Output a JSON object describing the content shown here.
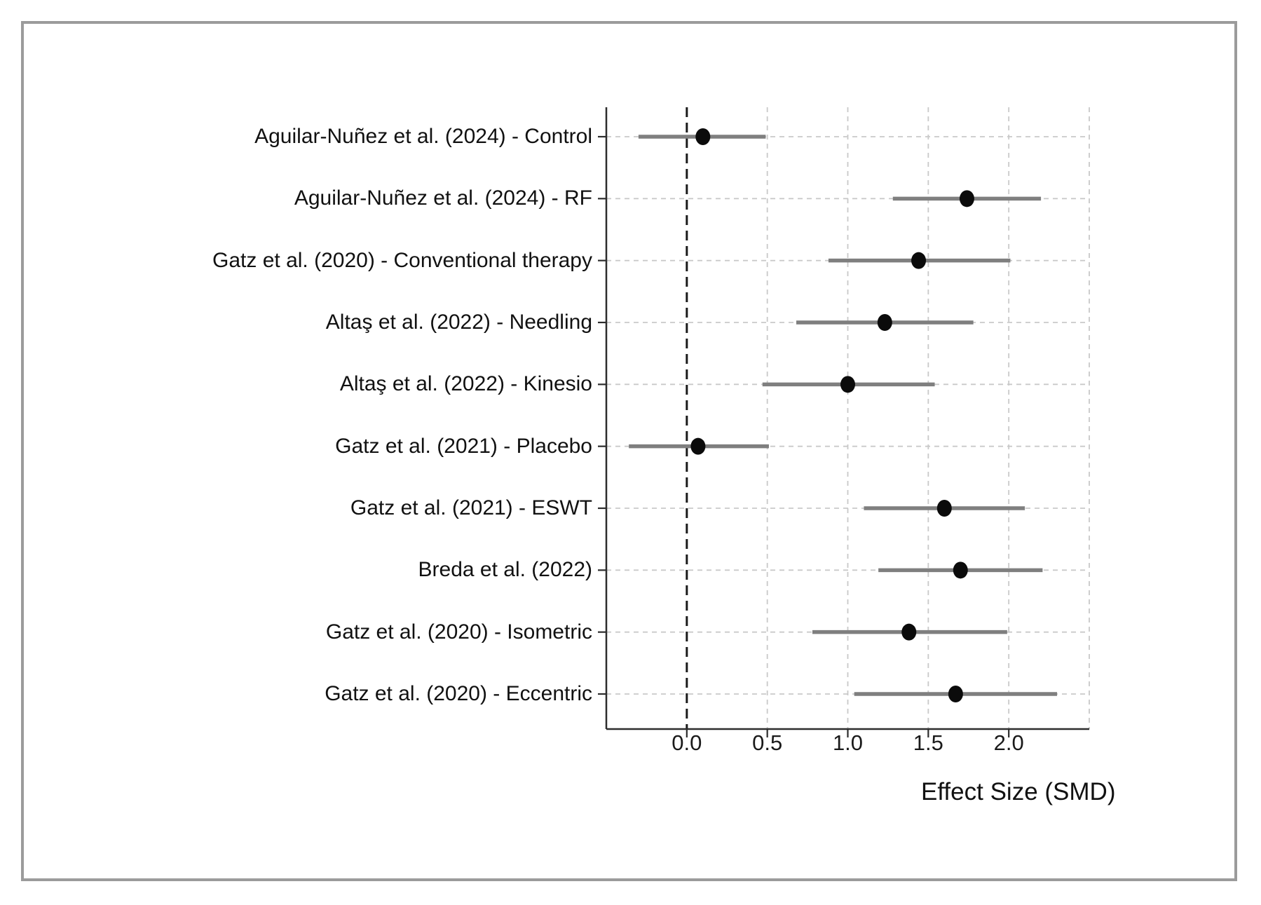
{
  "figure": {
    "background": "#ffffff",
    "border_color": "#9b9b9b"
  },
  "chart_data": {
    "type": "scatter",
    "subtype": "forest_plot",
    "title": "",
    "xlabel": "Effect Size (SMD)",
    "ylabel": "",
    "xlim": [
      -0.5,
      2.5
    ],
    "x_ticks": [
      0.0,
      0.5,
      1.0,
      1.5,
      2.0
    ],
    "x_tick_labels": [
      "0.0",
      "0.5",
      "1.0",
      "1.5",
      "2.0"
    ],
    "grid_x": [
      0.5,
      1.0,
      1.5,
      2.0,
      2.5
    ],
    "zero_line_x": 0.0,
    "grid": true,
    "legend": false,
    "studies": [
      {
        "label": "Aguilar-Nuñez et al. (2024) - Control",
        "estimate": 0.1,
        "ci_low": -0.3,
        "ci_high": 0.49
      },
      {
        "label": "Aguilar-Nuñez et al. (2024) - RF",
        "estimate": 1.74,
        "ci_low": 1.28,
        "ci_high": 2.2
      },
      {
        "label": "Gatz et al. (2020) - Conventional therapy",
        "estimate": 1.44,
        "ci_low": 0.88,
        "ci_high": 2.01
      },
      {
        "label": "Altaş et al. (2022) - Needling",
        "estimate": 1.23,
        "ci_low": 0.68,
        "ci_high": 1.78
      },
      {
        "label": "Altaş et al. (2022) - Kinesio",
        "estimate": 1.0,
        "ci_low": 0.47,
        "ci_high": 1.54
      },
      {
        "label": "Gatz et al. (2021) - Placebo",
        "estimate": 0.07,
        "ci_low": -0.36,
        "ci_high": 0.51
      },
      {
        "label": "Gatz et al. (2021) - ESWT",
        "estimate": 1.6,
        "ci_low": 1.1,
        "ci_high": 2.1
      },
      {
        "label": "Breda et al. (2022)",
        "estimate": 1.7,
        "ci_low": 1.19,
        "ci_high": 2.21
      },
      {
        "label": "Gatz et al. (2020) - Isometric",
        "estimate": 1.38,
        "ci_low": 0.78,
        "ci_high": 1.99
      },
      {
        "label": "Gatz et al. (2020) - Eccentric",
        "estimate": 1.67,
        "ci_low": 1.04,
        "ci_high": 2.3
      }
    ],
    "colors": {
      "point": "#0b0b0b",
      "ci_line": "#7f7f7f",
      "zero_line": "#1a1a1a",
      "grid": "#c9c9c9",
      "spine": "#2d2d2d",
      "text": "#111111"
    }
  }
}
